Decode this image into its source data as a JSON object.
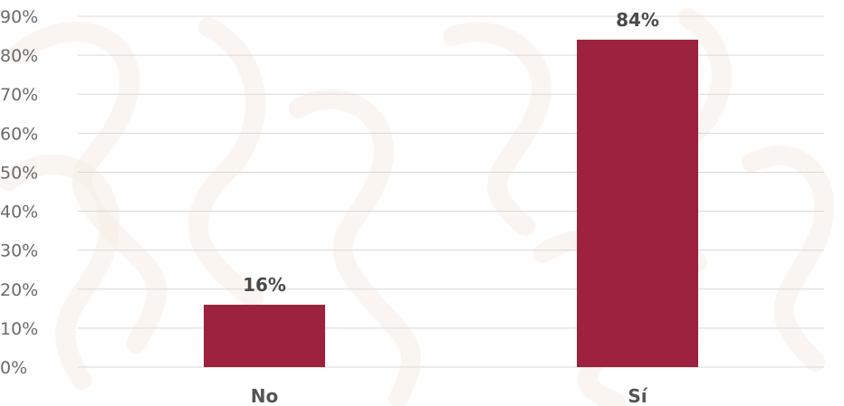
{
  "colors": {
    "bar": "#9d2240",
    "background_watermark": "#f6ece4"
  },
  "chart_data": {
    "type": "bar",
    "categories": [
      "No",
      "Sí"
    ],
    "values": [
      16,
      84
    ],
    "data_labels": [
      "16%",
      "84%"
    ],
    "ylim": [
      0,
      90
    ],
    "yticks": [
      0,
      10,
      20,
      30,
      40,
      50,
      60,
      70,
      80,
      90
    ],
    "ytick_labels": [
      "0%",
      "10%",
      "20%",
      "30%",
      "40%",
      "50%",
      "60%",
      "70%",
      "80%",
      "90%"
    ],
    "title": "",
    "xlabel": "",
    "ylabel": "",
    "grid": true,
    "legend": "none"
  }
}
